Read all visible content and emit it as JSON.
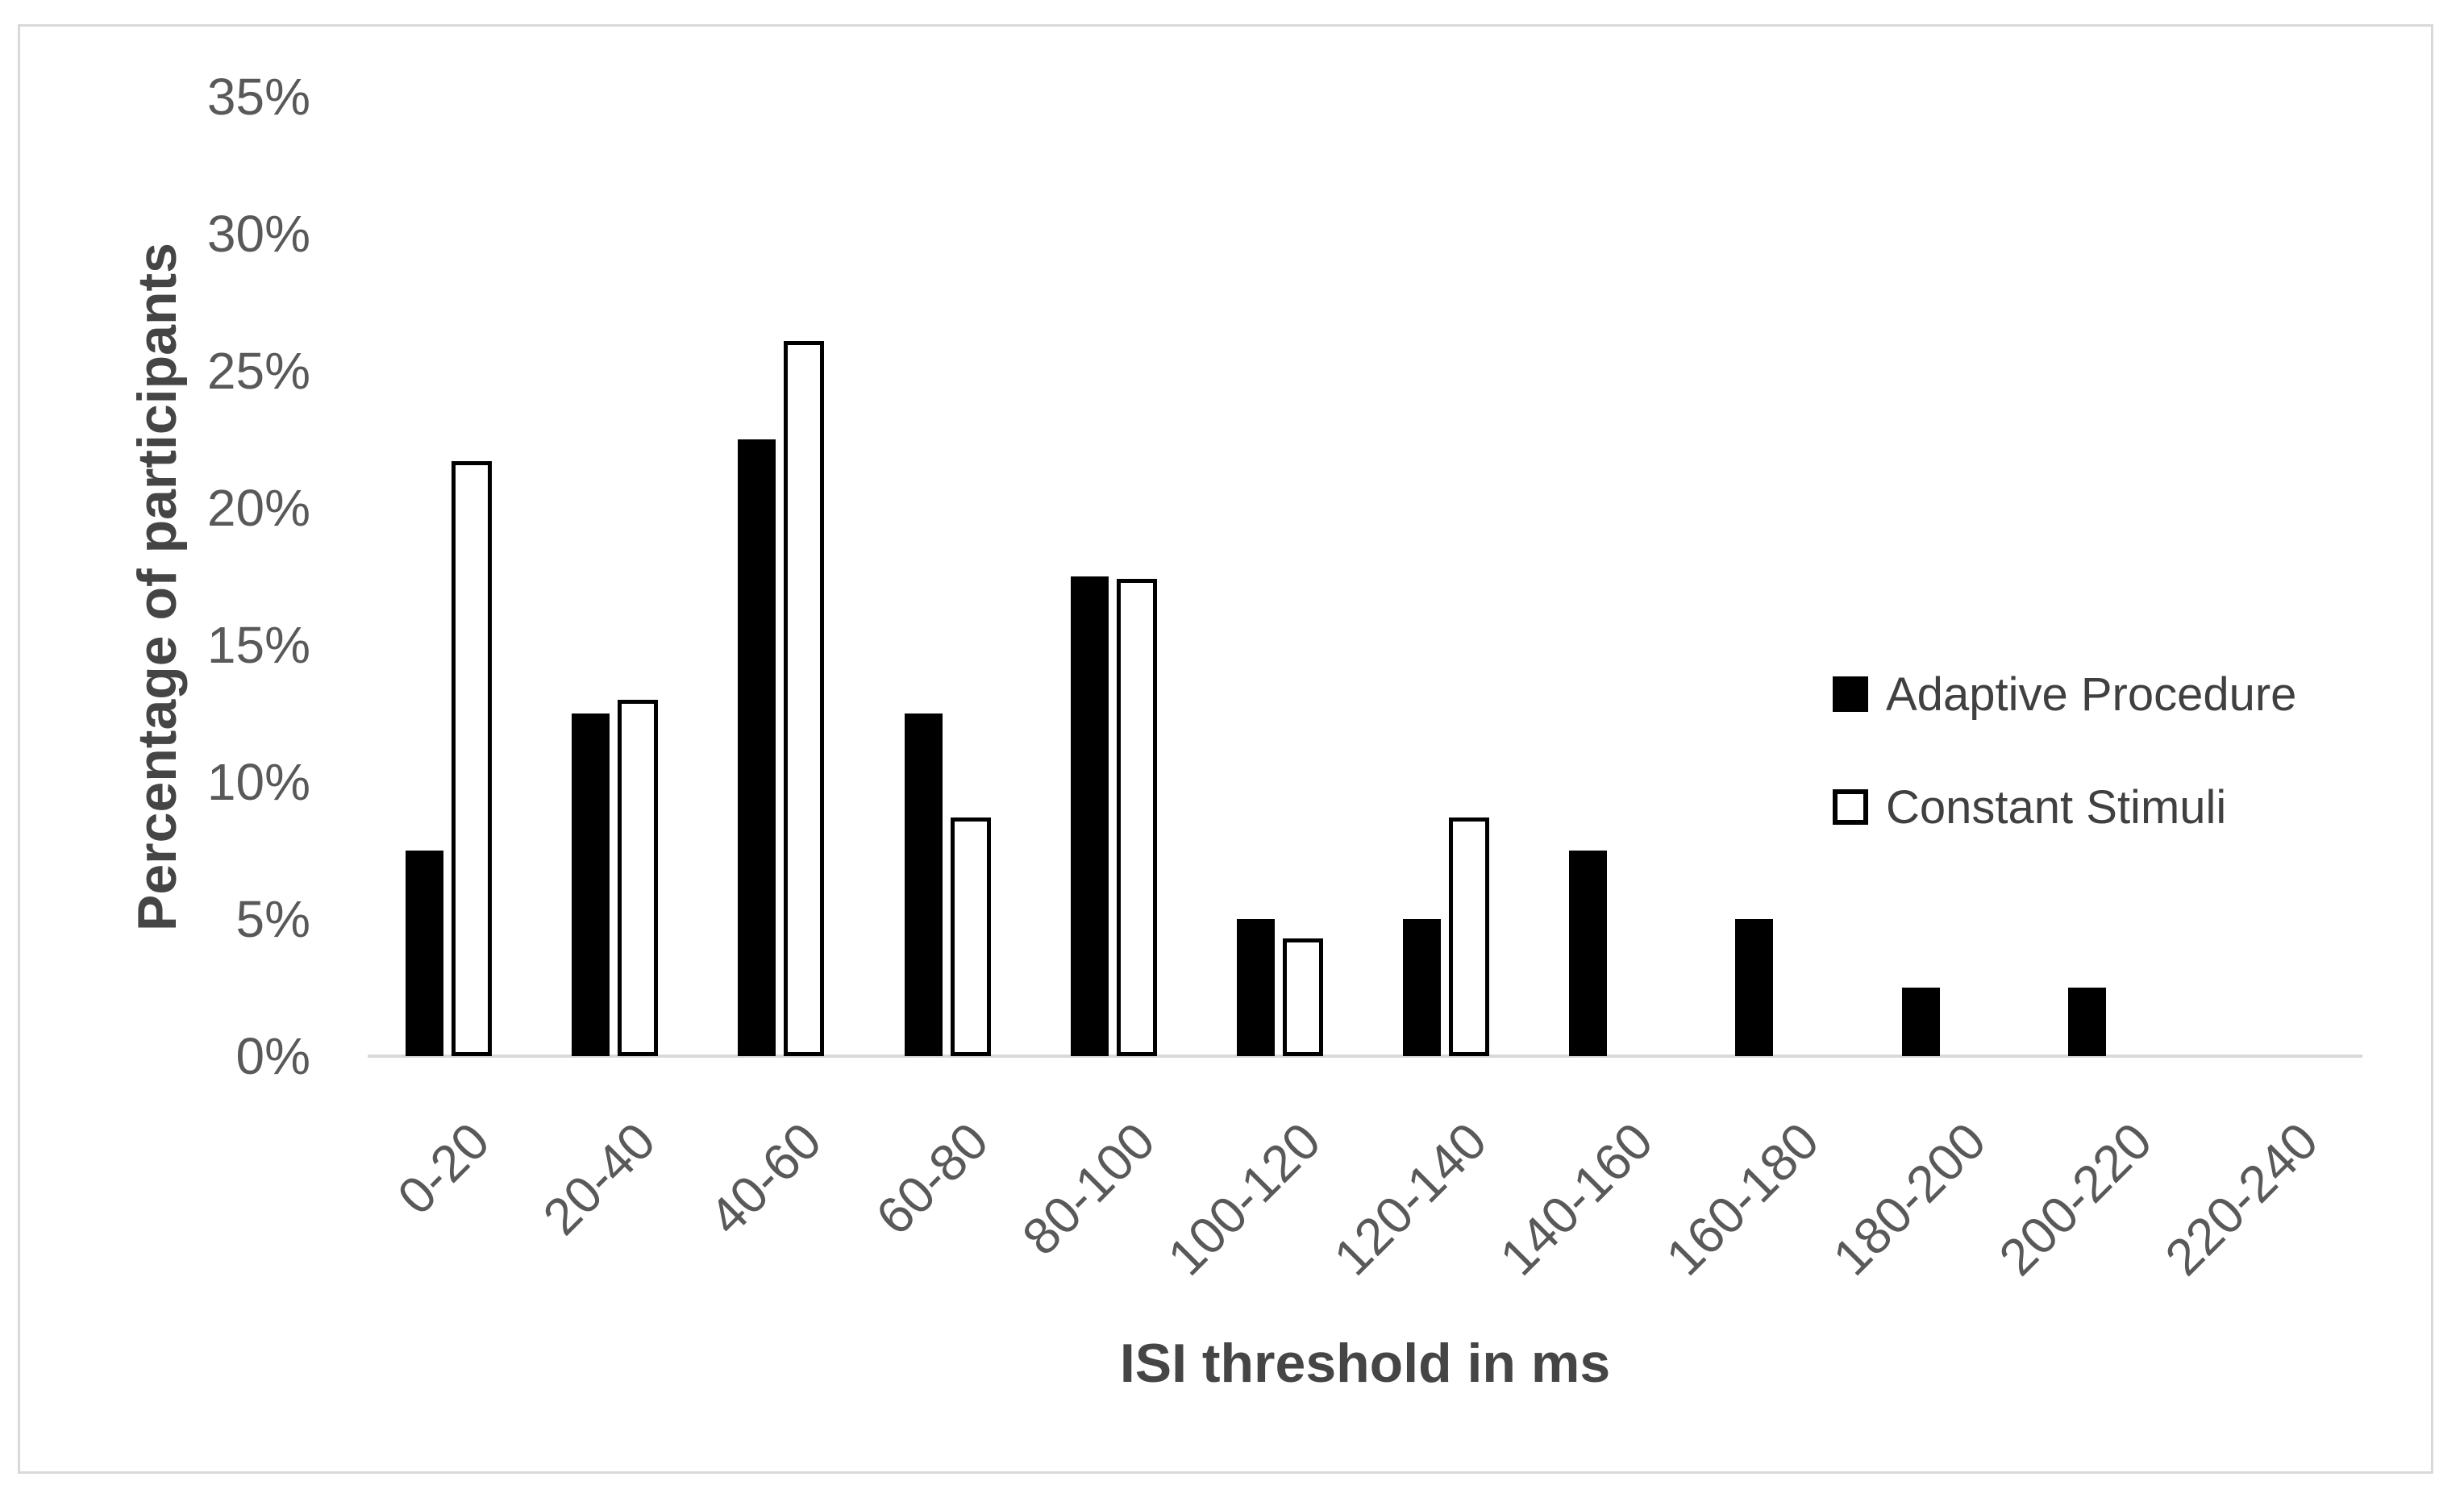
{
  "chart_data": {
    "type": "bar",
    "title": "",
    "categories": [
      "0-20",
      "20-40",
      "40-60",
      "60-80",
      "80-100",
      "100-120",
      "120-140",
      "140-160",
      "160-180",
      "180-200",
      "200-220",
      "220-240"
    ],
    "series": [
      {
        "name": "Adaptive Procedure",
        "style": "filled",
        "fill": "#000000",
        "values": [
          7.5,
          12.5,
          22.5,
          12.5,
          17.5,
          5,
          5,
          7.5,
          5,
          2.5,
          2.5,
          0
        ]
      },
      {
        "name": "Constant Stimuli",
        "style": "outlined",
        "fill": "#ffffff",
        "outline": "#000000",
        "values": [
          21.7,
          13.0,
          26.1,
          8.7,
          17.4,
          4.3,
          8.7,
          0,
          0,
          0,
          0,
          0
        ]
      }
    ],
    "xlabel": "ISI threshold in ms",
    "ylabel": "Percentage of participants",
    "ylim": [
      0,
      35
    ],
    "ytick_step": 5,
    "ytick_labels": [
      "0%",
      "5%",
      "10%",
      "15%",
      "20%",
      "25%",
      "30%",
      "35%"
    ],
    "grid": false,
    "legend_position": "center-right"
  },
  "colors": {
    "bar_fill": "#000000",
    "bar_outline": "#000000",
    "axis_line": "#d9d9d9",
    "figure_border": "#d9d9d9",
    "tick_label": "#595959",
    "axis_title": "#454545",
    "legend_text": "#404040",
    "background": "#ffffff"
  }
}
